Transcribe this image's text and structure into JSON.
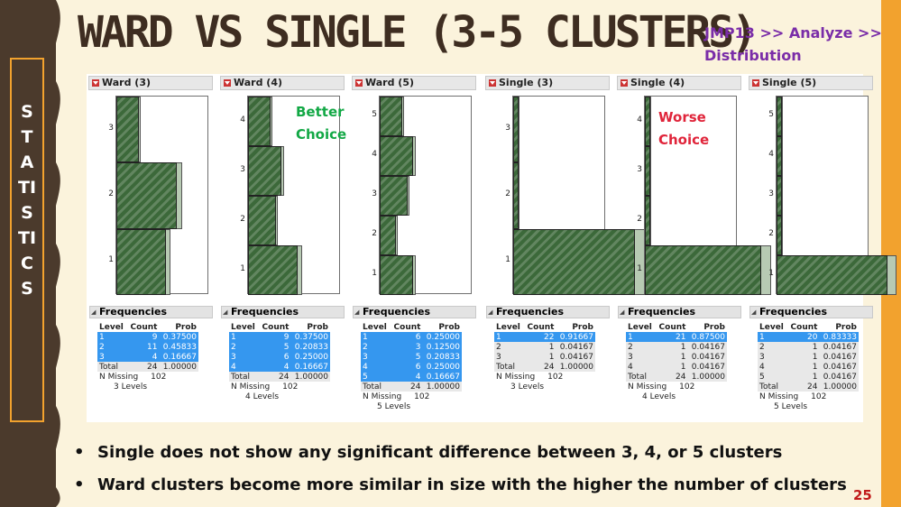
{
  "title": "WARD VS SINGLE (3-5 CLUSTERS)",
  "title_note": [
    "JMP13 >> Analyze >>",
    "Distribution"
  ],
  "sidebar_letters": [
    "S",
    "T",
    "A",
    "TI",
    "S",
    "TI",
    "C",
    "S"
  ],
  "annotations": [
    {
      "lines": [
        "Better",
        "Choice"
      ],
      "color": "#12a845"
    },
    {
      "lines": [
        "Worse",
        "Choice"
      ],
      "color": "#e0243a"
    }
  ],
  "panels": [
    {
      "title": "Ward (3)",
      "levels": 3,
      "total": 24,
      "rows": [
        [
          "1",
          "9",
          "0.37500"
        ],
        [
          "2",
          "11",
          "0.45833"
        ],
        [
          "3",
          "4",
          "0.16667"
        ]
      ],
      "selected": [
        1,
        2,
        3
      ],
      "n_missing": "102",
      "levels_text": "3  Levels"
    },
    {
      "title": "Ward (4)",
      "levels": 4,
      "total": 24,
      "rows": [
        [
          "1",
          "9",
          "0.37500"
        ],
        [
          "2",
          "5",
          "0.20833"
        ],
        [
          "3",
          "6",
          "0.25000"
        ],
        [
          "4",
          "4",
          "0.16667"
        ]
      ],
      "selected": [
        1,
        2,
        3,
        4
      ],
      "n_missing": "102",
      "levels_text": "4  Levels"
    },
    {
      "title": "Ward (5)",
      "levels": 5,
      "total": 24,
      "rows": [
        [
          "1",
          "6",
          "0.25000"
        ],
        [
          "2",
          "3",
          "0.12500"
        ],
        [
          "3",
          "5",
          "0.20833"
        ],
        [
          "4",
          "6",
          "0.25000"
        ],
        [
          "5",
          "4",
          "0.16667"
        ]
      ],
      "selected": [
        1,
        2,
        3,
        4,
        5
      ],
      "n_missing": "102",
      "levels_text": "5  Levels"
    },
    {
      "title": "Single (3)",
      "levels": 3,
      "total": 24,
      "rows": [
        [
          "1",
          "22",
          "0.91667"
        ],
        [
          "2",
          "1",
          "0.04167"
        ],
        [
          "3",
          "1",
          "0.04167"
        ]
      ],
      "selected": [
        1
      ],
      "n_missing": "102",
      "levels_text": "3  Levels"
    },
    {
      "title": "Single (4)",
      "levels": 4,
      "total": 24,
      "rows": [
        [
          "1",
          "21",
          "0.87500"
        ],
        [
          "2",
          "1",
          "0.04167"
        ],
        [
          "3",
          "1",
          "0.04167"
        ],
        [
          "4",
          "1",
          "0.04167"
        ]
      ],
      "selected": [
        1
      ],
      "n_missing": "102",
      "levels_text": "4  Levels"
    },
    {
      "title": "Single (5)",
      "levels": 5,
      "total": 24,
      "rows": [
        [
          "1",
          "20",
          "0.83333"
        ],
        [
          "2",
          "1",
          "0.04167"
        ],
        [
          "3",
          "1",
          "0.04167"
        ],
        [
          "4",
          "1",
          "0.04167"
        ],
        [
          "5",
          "1",
          "0.04167"
        ]
      ],
      "selected": [
        1
      ],
      "n_missing": "102",
      "levels_text": "5  Levels"
    }
  ],
  "table_headers": [
    "Level",
    "Count",
    "Prob"
  ],
  "frequencies_label": "Frequencies",
  "total_label": "Total",
  "total_prob": "1.00000",
  "n_missing_label": "N Missing",
  "bullets": [
    "Single does not show any significant difference between 3, 4, or 5 clusters",
    "Ward clusters become more similar in size with the higher the number of clusters"
  ],
  "page_number": "25",
  "colors": {
    "hist_fill": "#3d6b3a",
    "prob_fill": "#b7cab3",
    "selected_row": "#3597ef",
    "title": "#3e2d21",
    "note": "#7a2da8"
  }
}
